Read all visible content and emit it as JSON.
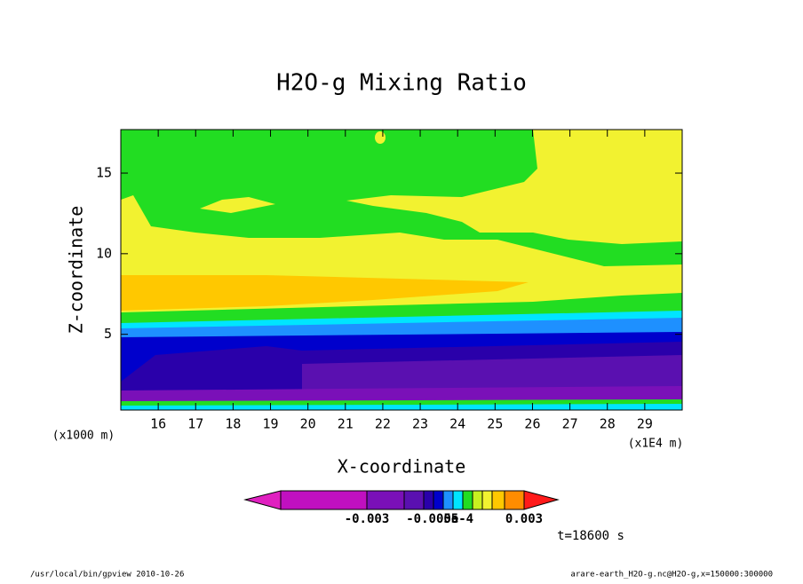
{
  "chart_data": {
    "type": "contour",
    "title": "H2O-g Mixing Ratio",
    "xlabel": "X-coordinate",
    "ylabel": "Z-coordinate",
    "xunit": "(x1E4 m)",
    "yunit": "(x1000 m)",
    "xlim": [
      15,
      30
    ],
    "xticks": [
      16,
      17,
      18,
      19,
      20,
      21,
      22,
      23,
      24,
      25,
      26,
      27,
      28,
      29
    ],
    "ylim": [
      0.3,
      17.7
    ],
    "yticks": [
      5,
      10,
      15
    ],
    "colorbar_ticks": [
      {
        "value": -0.003,
        "label": "-0.003"
      },
      {
        "value": -0.0005,
        "label": "-0.0005"
      },
      {
        "value": 0.0005,
        "label": "5e-4"
      },
      {
        "value": 0.003,
        "label": "0.003"
      }
    ],
    "time_label": "t=18600 s",
    "footer_left": "/usr/local/bin/gpview  2010-10-26",
    "footer_right": "arare-earth_H2O-g.nc@H2O-g,x=150000:300000"
  }
}
